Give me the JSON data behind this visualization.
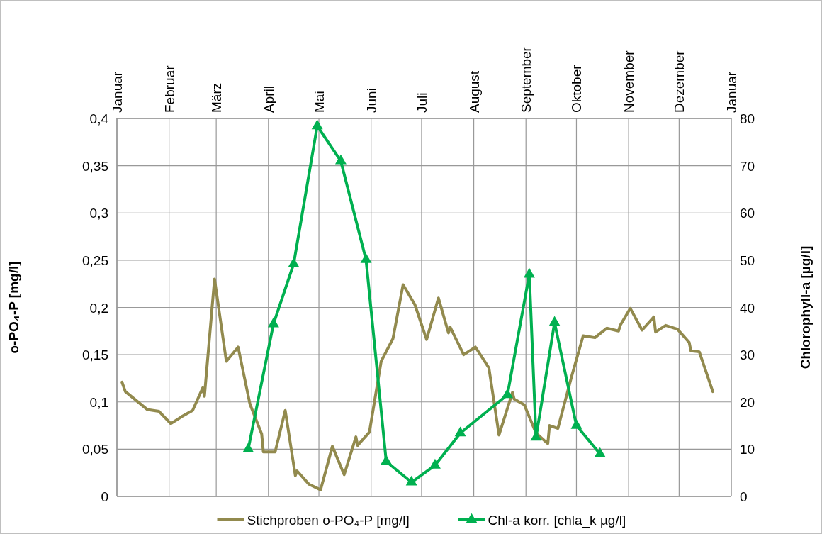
{
  "chart_data": {
    "type": "line",
    "ylabel": "o-PO₄-P [mg/l]",
    "y2label": "Chlorophyll-a [µg/l]",
    "xticks": [
      {
        "value": "--01-01",
        "label": "Januar"
      },
      {
        "value": "--02-01",
        "label": "Februar"
      },
      {
        "value": "--03-01",
        "label": "März"
      },
      {
        "value": "--04-01",
        "label": "April"
      },
      {
        "value": "--05-01",
        "label": "Mai"
      },
      {
        "value": "--06-01",
        "label": "Juni"
      },
      {
        "value": "--07-01",
        "label": "Juli"
      },
      {
        "value": "--08-01",
        "label": "August"
      },
      {
        "value": "--09-01",
        "label": "September"
      },
      {
        "value": "--10-01",
        "label": "Oktober"
      },
      {
        "value": "--11-01",
        "label": "November"
      },
      {
        "value": "--12-01",
        "label": "Dezember"
      }
    ],
    "xlim": [
      "--01-01",
      "--12-31T23:59"
    ],
    "annotations": [
      "Januar"
    ],
    "ylim": [
      0,
      0.4
    ],
    "yticks": [
      0,
      {
        "value": 0.05,
        "label": "0,05"
      },
      {
        "value": 0.1,
        "label": "0,1"
      },
      {
        "value": 0.15,
        "label": "0,15"
      },
      {
        "value": 0.2,
        "label": "0,2"
      },
      {
        "value": 0.25,
        "label": "0,25"
      },
      {
        "value": 0.3,
        "label": "0,3"
      },
      {
        "value": 0.35,
        "label": "0,35"
      },
      {
        "value": 0.4,
        "label": "0,4"
      }
    ],
    "y2lim": [
      0,
      80
    ],
    "y2ticks": [
      0,
      10,
      20,
      30,
      40,
      50,
      60,
      70,
      80
    ],
    "grid": true,
    "legend": "bottom",
    "series": [
      {
        "name": "Stichproben o-PO₄-P [mg/l]",
        "color": "#928a4e",
        "marker": "none",
        "x": [
          "--01-04",
          "--01-06",
          "--01-19",
          "--01-26",
          "--02-02",
          "--02-09",
          "--02-15",
          "--02-21",
          "--02-22",
          "--02-28",
          "--03-07",
          "--03-14",
          "--03-21",
          "--03-28",
          "--03-29",
          "--04-05",
          "--04-11",
          "--04-17",
          "--04-18",
          "--04-25",
          "--05-02",
          "--05-09",
          "--05-16",
          "--05-23",
          "--05-24",
          "--05-31",
          "--06-07",
          "--06-14",
          "--06-20",
          "--06-27",
          "--07-04",
          "--07-11",
          "--07-17",
          "--07-18",
          "--07-26",
          "--08-02",
          "--08-10",
          "--08-16",
          "--08-24",
          "--08-25",
          "--08-31",
          "--09-07",
          "--09-14",
          "--09-15",
          "--09-20",
          "--09-28",
          "--10-05",
          "--10-12",
          "--10-19",
          "--10-26",
          "--10-27",
          "--11-02",
          "--11-09",
          "--11-16",
          "--11-17",
          "--11-23",
          "--11-30",
          "--12-07",
          "--12-08",
          "--12-13",
          "--12-21"
        ],
        "values": [
          0.121,
          0.111,
          0.092,
          0.09,
          0.077,
          0.085,
          0.091,
          0.115,
          0.106,
          0.23,
          0.143,
          0.158,
          0.098,
          0.066,
          0.047,
          0.047,
          0.091,
          0.022,
          0.027,
          0.013,
          0.007,
          0.053,
          0.023,
          0.063,
          0.054,
          0.068,
          0.143,
          0.167,
          0.224,
          0.203,
          0.166,
          0.21,
          0.173,
          0.179,
          0.15,
          0.158,
          0.136,
          0.065,
          0.11,
          0.103,
          0.097,
          0.067,
          0.056,
          0.075,
          0.072,
          0.126,
          0.17,
          0.168,
          0.178,
          0.175,
          0.181,
          0.199,
          0.176,
          0.19,
          0.174,
          0.181,
          0.177,
          0.163,
          0.154,
          0.153,
          0.111
        ]
      },
      {
        "name": "Chl-a korr. [chla_k µg/l]",
        "color": "#00b050",
        "marker": "triangle",
        "axis": "y2",
        "x": [
          "--03-20",
          "--04-04",
          "--04-16",
          "--04-30",
          "--05-14",
          "--05-29",
          "--06-10",
          "--06-25",
          "--07-09",
          "--07-24",
          "--08-21",
          "--09-03",
          "--09-07",
          "--09-18",
          "--10-01",
          "--10-15"
        ],
        "values": [
          10,
          36.5,
          49.2,
          78.4,
          71,
          50.1,
          7.4,
          3,
          6.6,
          13.4,
          21.5,
          47,
          12.5,
          36.8,
          15,
          9
        ]
      }
    ]
  }
}
